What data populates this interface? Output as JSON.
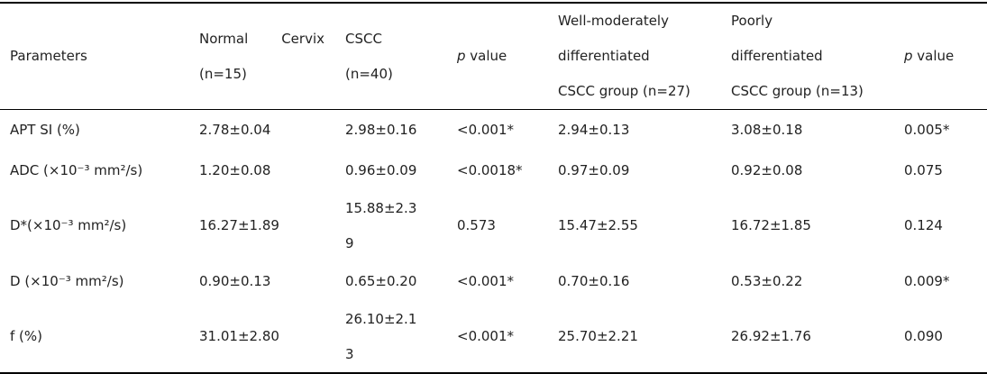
{
  "table": {
    "header": [
      "Parameters",
      "Normal Cervix (n=15)",
      "CSCC\n(n=40)",
      "p value",
      "Well-moderately\ndifferentiated\nCSCC group (n=27)",
      "Poorly\ndifferentiated\nCSCC group (n=13)",
      "p value"
    ],
    "rows": [
      [
        "APT SI (%)",
        "2.78±0.04",
        "2.98±0.16",
        "<0.001*",
        "2.94±0.13",
        "3.08±0.18",
        "0.005*"
      ],
      [
        "ADC (×10⁻³ mm²/s)",
        "1.20±0.08",
        "0.96±0.09",
        "<0.0018*",
        "0.97±0.09",
        "0.92±0.08",
        "0.075"
      ],
      [
        "D*(×10⁻³ mm²/s)",
        "16.27±1.89",
        "15.88±2.39",
        "0.573",
        "15.47±2.55",
        "16.72±1.85",
        "0.124"
      ],
      [
        "D (×10⁻³ mm²/s)",
        "0.90±0.13",
        "0.65±0.20",
        "<0.001*",
        "0.70±0.16",
        "0.53±0.22",
        "0.009*"
      ],
      [
        "f (%)",
        "31.01±2.80",
        "26.10±2.13",
        "<0.001*",
        "25.70±2.21",
        "26.92±1.76",
        "0.090"
      ]
    ]
  }
}
